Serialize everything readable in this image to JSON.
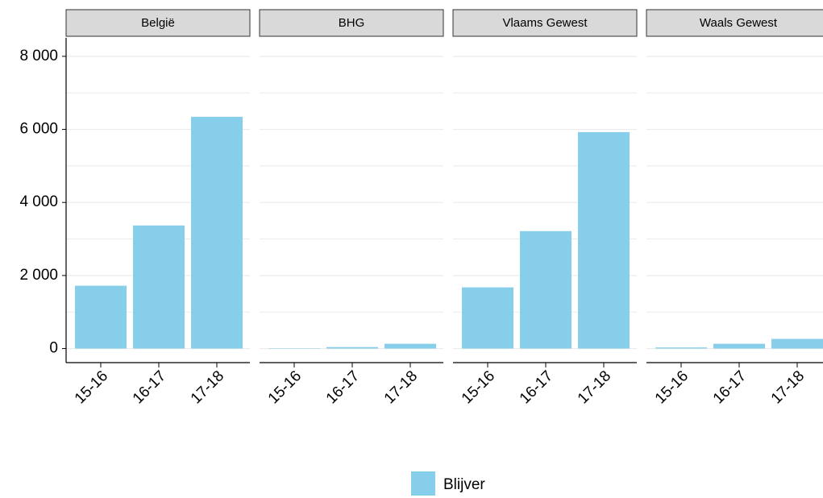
{
  "chart_data": {
    "type": "bar",
    "categories": [
      "15-16",
      "16-17",
      "17-18"
    ],
    "facets": [
      {
        "title": "België",
        "values": [
          1720,
          3370,
          6345
        ]
      },
      {
        "title": "BHG",
        "values": [
          10,
          40,
          130
        ]
      },
      {
        "title": "Vlaams Gewest",
        "values": [
          1675,
          3215,
          5925
        ]
      },
      {
        "title": "Waals Gewest",
        "values": [
          30,
          130,
          265
        ]
      }
    ],
    "series": [
      {
        "name": "Blijver",
        "color": "#87ceeb"
      }
    ],
    "ylim": [
      -385,
      8505
    ],
    "yticks": [
      {
        "value": 0,
        "label": "0"
      },
      {
        "value": 2000,
        "label": "2 000"
      },
      {
        "value": 4000,
        "label": "4 000"
      },
      {
        "value": 6000,
        "label": "6 000"
      },
      {
        "value": 8000,
        "label": "8 000"
      }
    ],
    "minor_yticks": [
      1000,
      3000,
      5000,
      7000
    ],
    "grid": true
  }
}
